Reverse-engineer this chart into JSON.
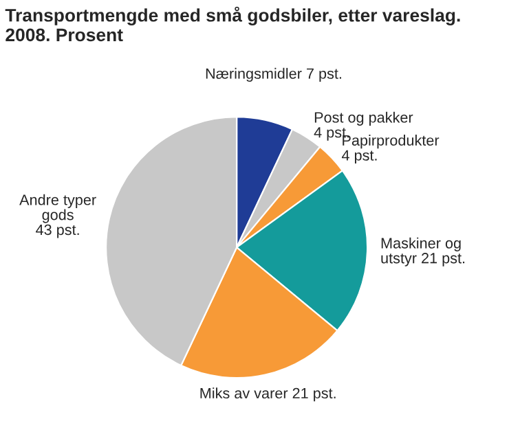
{
  "chart_data": {
    "type": "pie",
    "title": "Transportmengde med små godsbiler, etter vareslag.\n2008. Prosent",
    "categories": [
      "Næringsmidler ",
      "Post og pakker\n",
      "Papirprodukter\n",
      "Maskiner og\nutstyr ",
      "Miks av varer ",
      "Andre typer\ngods\n"
    ],
    "values": [
      7,
      4,
      4,
      21,
      21,
      43
    ],
    "value_labels": [
      "7 pst.",
      "4 pst.",
      "4 pst.",
      "21 pst.",
      "21 pst.",
      "43 pst."
    ],
    "colors": [
      "#1f3c96",
      "#c8c8c8",
      "#f79a37",
      "#149b9b",
      "#f79a37",
      "#c8c8c8"
    ]
  }
}
